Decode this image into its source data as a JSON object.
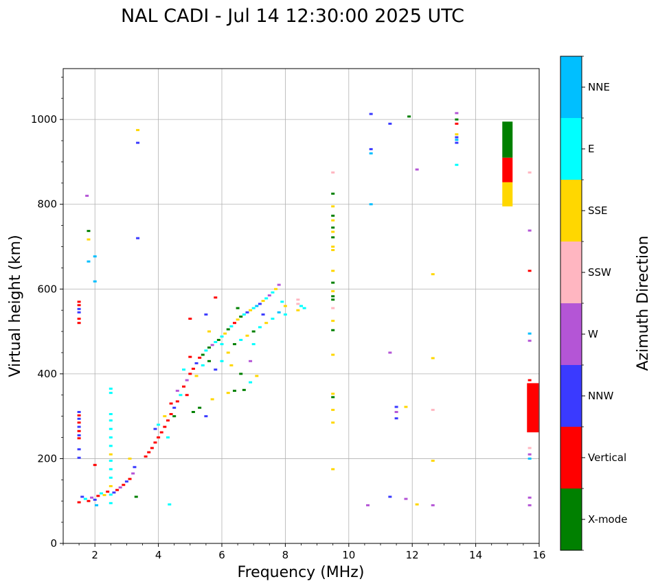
{
  "chart_data": {
    "type": "scatter",
    "title": "NAL CADI - Jul 14 12:30:00 2025 UTC",
    "xlabel": "Frequency (MHz)",
    "ylabel": "Virtual height (km)",
    "xlim": [
      1,
      16
    ],
    "ylim": [
      0,
      1120
    ],
    "xticks": [
      "2",
      "4",
      "6",
      "8",
      "10",
      "12",
      "14",
      "16"
    ],
    "yticks": [
      "0",
      "200",
      "400",
      "600",
      "800",
      "1000"
    ],
    "grid": true,
    "colorbar": {
      "label": "Azimuth Direction",
      "categories": [
        {
          "name": "X-mode",
          "color": "#008000"
        },
        {
          "name": "Vertical",
          "color": "#ff0000"
        },
        {
          "name": "NNW",
          "color": "#3a3aff"
        },
        {
          "name": "W",
          "color": "#b455d6"
        },
        {
          "name": "SSW",
          "color": "#ffb6c1"
        },
        {
          "name": "SSE",
          "color": "#ffd700"
        },
        {
          "name": "E",
          "color": "#00ffff"
        },
        {
          "name": "NNE",
          "color": "#00bfff"
        }
      ]
    },
    "points": [
      [
        1.5,
        570,
        1
      ],
      [
        1.5,
        562,
        1
      ],
      [
        1.5,
        553,
        2
      ],
      [
        1.5,
        545,
        2
      ],
      [
        1.5,
        530,
        1
      ],
      [
        1.5,
        520,
        1
      ],
      [
        1.5,
        310,
        2
      ],
      [
        1.5,
        302,
        1
      ],
      [
        1.5,
        294,
        2
      ],
      [
        1.5,
        285,
        1
      ],
      [
        1.5,
        275,
        2
      ],
      [
        1.5,
        265,
        1
      ],
      [
        1.5,
        255,
        2
      ],
      [
        1.5,
        248,
        1
      ],
      [
        1.5,
        222,
        2
      ],
      [
        1.5,
        202,
        2
      ],
      [
        1.5,
        97,
        1
      ],
      [
        1.75,
        820,
        3
      ],
      [
        1.8,
        737,
        0
      ],
      [
        1.8,
        717,
        5
      ],
      [
        1.8,
        665,
        7
      ],
      [
        2.0,
        677,
        7
      ],
      [
        2.0,
        618,
        7
      ],
      [
        3.35,
        975,
        5
      ],
      [
        3.35,
        945,
        2
      ],
      [
        3.35,
        720,
        2
      ],
      [
        1.6,
        110,
        2
      ],
      [
        1.7,
        105,
        6
      ],
      [
        1.8,
        100,
        1
      ],
      [
        1.9,
        108,
        3
      ],
      [
        2.0,
        103,
        2
      ],
      [
        2.1,
        112,
        1
      ],
      [
        2.2,
        118,
        6
      ],
      [
        2.3,
        114,
        5
      ],
      [
        2.4,
        122,
        1
      ],
      [
        2.6,
        120,
        2
      ],
      [
        2.7,
        126,
        1
      ],
      [
        2.8,
        132,
        3
      ],
      [
        2.9,
        138,
        1
      ],
      [
        3.0,
        146,
        2
      ],
      [
        3.1,
        152,
        1
      ],
      [
        3.2,
        165,
        3
      ],
      [
        3.25,
        180,
        2
      ],
      [
        3.1,
        200,
        5
      ],
      [
        2.0,
        185,
        1
      ],
      [
        2.05,
        90,
        7
      ],
      [
        3.3,
        110,
        0
      ],
      [
        4.35,
        92,
        6
      ],
      [
        2.5,
        365,
        6
      ],
      [
        2.5,
        355,
        6
      ],
      [
        2.5,
        305,
        6
      ],
      [
        2.5,
        290,
        6
      ],
      [
        2.5,
        270,
        6
      ],
      [
        2.5,
        250,
        6
      ],
      [
        2.5,
        230,
        6
      ],
      [
        2.5,
        210,
        5
      ],
      [
        2.5,
        195,
        6
      ],
      [
        2.5,
        175,
        6
      ],
      [
        2.5,
        155,
        6
      ],
      [
        2.5,
        135,
        5
      ],
      [
        2.5,
        115,
        6
      ],
      [
        2.5,
        95,
        6
      ],
      [
        3.6,
        205,
        1
      ],
      [
        3.7,
        215,
        1
      ],
      [
        3.8,
        225,
        1
      ],
      [
        3.9,
        238,
        1
      ],
      [
        4.0,
        250,
        1
      ],
      [
        4.1,
        262,
        1
      ],
      [
        4.2,
        275,
        1
      ],
      [
        4.3,
        290,
        1
      ],
      [
        4.4,
        305,
        1
      ],
      [
        4.5,
        320,
        2
      ],
      [
        4.6,
        335,
        1
      ],
      [
        4.7,
        350,
        6
      ],
      [
        4.8,
        370,
        1
      ],
      [
        4.9,
        385,
        3
      ],
      [
        5.0,
        400,
        1
      ],
      [
        5.1,
        412,
        1
      ],
      [
        5.2,
        425,
        2
      ],
      [
        5.3,
        438,
        1
      ],
      [
        5.4,
        445,
        0
      ],
      [
        5.5,
        455,
        6
      ],
      [
        5.6,
        462,
        0
      ],
      [
        5.7,
        468,
        3
      ],
      [
        5.8,
        475,
        6
      ],
      [
        5.9,
        480,
        0
      ],
      [
        6.0,
        488,
        6
      ],
      [
        6.1,
        495,
        5
      ],
      [
        6.2,
        505,
        0
      ],
      [
        6.3,
        512,
        6
      ],
      [
        6.4,
        520,
        1
      ],
      [
        6.5,
        528,
        5
      ],
      [
        6.6,
        535,
        0
      ],
      [
        6.7,
        540,
        6
      ],
      [
        6.8,
        545,
        2
      ],
      [
        6.9,
        550,
        5
      ],
      [
        7.0,
        555,
        6
      ],
      [
        7.1,
        560,
        7
      ],
      [
        7.2,
        565,
        2
      ],
      [
        7.3,
        572,
        5
      ],
      [
        7.4,
        578,
        6
      ],
      [
        7.5,
        585,
        3
      ],
      [
        7.6,
        592,
        6
      ],
      [
        7.7,
        600,
        5
      ],
      [
        7.8,
        610,
        3
      ],
      [
        4.0,
        280,
        6
      ],
      [
        4.2,
        300,
        5
      ],
      [
        4.4,
        330,
        1
      ],
      [
        4.6,
        360,
        3
      ],
      [
        4.8,
        410,
        6
      ],
      [
        5.0,
        440,
        1
      ],
      [
        5.2,
        395,
        5
      ],
      [
        5.4,
        420,
        6
      ],
      [
        5.6,
        430,
        0
      ],
      [
        5.8,
        410,
        2
      ],
      [
        6.0,
        430,
        6
      ],
      [
        6.2,
        450,
        5
      ],
      [
        6.4,
        470,
        0
      ],
      [
        6.6,
        480,
        6
      ],
      [
        6.8,
        490,
        5
      ],
      [
        7.0,
        500,
        0
      ],
      [
        7.2,
        510,
        6
      ],
      [
        7.4,
        520,
        5
      ],
      [
        7.6,
        530,
        6
      ],
      [
        7.8,
        545,
        7
      ],
      [
        8.0,
        560,
        5
      ],
      [
        8.0,
        540,
        6
      ],
      [
        7.9,
        570,
        6
      ],
      [
        5.3,
        320,
        0
      ],
      [
        5.5,
        300,
        2
      ],
      [
        5.7,
        340,
        5
      ],
      [
        6.2,
        355,
        5
      ],
      [
        6.4,
        360,
        0
      ],
      [
        6.7,
        362,
        0
      ],
      [
        6.9,
        380,
        6
      ],
      [
        7.1,
        395,
        5
      ],
      [
        5.1,
        310,
        0
      ],
      [
        4.9,
        350,
        1
      ],
      [
        5.6,
        500,
        5
      ],
      [
        6.9,
        430,
        3
      ],
      [
        5.0,
        530,
        1
      ],
      [
        5.5,
        540,
        2
      ],
      [
        6.0,
        470,
        6
      ],
      [
        6.3,
        420,
        5
      ],
      [
        6.6,
        400,
        0
      ],
      [
        7.0,
        470,
        6
      ],
      [
        5.8,
        580,
        1
      ],
      [
        6.5,
        555,
        0
      ],
      [
        7.3,
        540,
        2
      ],
      [
        4.5,
        300,
        0
      ],
      [
        4.3,
        250,
        6
      ],
      [
        3.9,
        270,
        2
      ],
      [
        8.4,
        575,
        4
      ],
      [
        8.4,
        565,
        4
      ],
      [
        8.5,
        560,
        6
      ],
      [
        8.6,
        555,
        6
      ],
      [
        8.4,
        550,
        5
      ],
      [
        9.5,
        875,
        4
      ],
      [
        9.5,
        825,
        0
      ],
      [
        9.5,
        795,
        5
      ],
      [
        9.5,
        773,
        0
      ],
      [
        9.5,
        762,
        5
      ],
      [
        9.5,
        745,
        0
      ],
      [
        9.5,
        735,
        5
      ],
      [
        9.5,
        722,
        0
      ],
      [
        9.5,
        700,
        5
      ],
      [
        9.5,
        692,
        5
      ],
      [
        9.5,
        643,
        5
      ],
      [
        9.5,
        615,
        0
      ],
      [
        9.5,
        595,
        5
      ],
      [
        9.5,
        583,
        0
      ],
      [
        9.5,
        575,
        0
      ],
      [
        9.5,
        555,
        4
      ],
      [
        9.5,
        525,
        5
      ],
      [
        9.5,
        503,
        0
      ],
      [
        9.5,
        445,
        5
      ],
      [
        9.5,
        353,
        5
      ],
      [
        9.5,
        345,
        0
      ],
      [
        9.5,
        315,
        5
      ],
      [
        9.5,
        285,
        5
      ],
      [
        9.5,
        175,
        5
      ],
      [
        10.7,
        1013,
        2
      ],
      [
        10.7,
        930,
        2
      ],
      [
        10.7,
        920,
        7
      ],
      [
        10.7,
        800,
        7
      ],
      [
        10.6,
        90,
        3
      ],
      [
        11.3,
        990,
        2
      ],
      [
        11.3,
        450,
        3
      ],
      [
        11.3,
        110,
        2
      ],
      [
        11.5,
        322,
        2
      ],
      [
        11.5,
        310,
        3
      ],
      [
        11.5,
        295,
        2
      ],
      [
        11.8,
        322,
        5
      ],
      [
        11.9,
        1007,
        0
      ],
      [
        11.8,
        105,
        3
      ],
      [
        12.15,
        882,
        3
      ],
      [
        12.15,
        92,
        5
      ],
      [
        12.65,
        635,
        5
      ],
      [
        12.65,
        437,
        5
      ],
      [
        12.65,
        315,
        4
      ],
      [
        12.65,
        195,
        5
      ],
      [
        12.65,
        90,
        3
      ],
      [
        13.4,
        1015,
        3
      ],
      [
        13.4,
        1000,
        0
      ],
      [
        13.4,
        990,
        1
      ],
      [
        13.4,
        965,
        5
      ],
      [
        13.4,
        958,
        2
      ],
      [
        13.4,
        952,
        7
      ],
      [
        13.4,
        945,
        2
      ],
      [
        13.4,
        893,
        6
      ],
      [
        15.7,
        875,
        4
      ],
      [
        15.7,
        738,
        3
      ],
      [
        15.7,
        643,
        1
      ],
      [
        15.7,
        495,
        7
      ],
      [
        15.7,
        478,
        3
      ],
      [
        15.7,
        385,
        1
      ],
      [
        15.7,
        357,
        5
      ],
      [
        15.7,
        322,
        7
      ],
      [
        15.7,
        225,
        4
      ],
      [
        15.7,
        210,
        3
      ],
      [
        15.7,
        200,
        7
      ],
      [
        15.7,
        108,
        3
      ],
      [
        15.7,
        90,
        3
      ]
    ],
    "column_15": [
      {
        "f": 15.0,
        "h0": 795,
        "h1": 852,
        "mode": 5
      },
      {
        "f": 15.0,
        "h0": 852,
        "h1": 910,
        "mode": 1
      },
      {
        "f": 15.0,
        "h0": 910,
        "h1": 995,
        "mode": 0
      }
    ],
    "column_16": [
      {
        "f": 15.8,
        "h0": 262,
        "h1": 378,
        "mode": 1
      }
    ]
  }
}
